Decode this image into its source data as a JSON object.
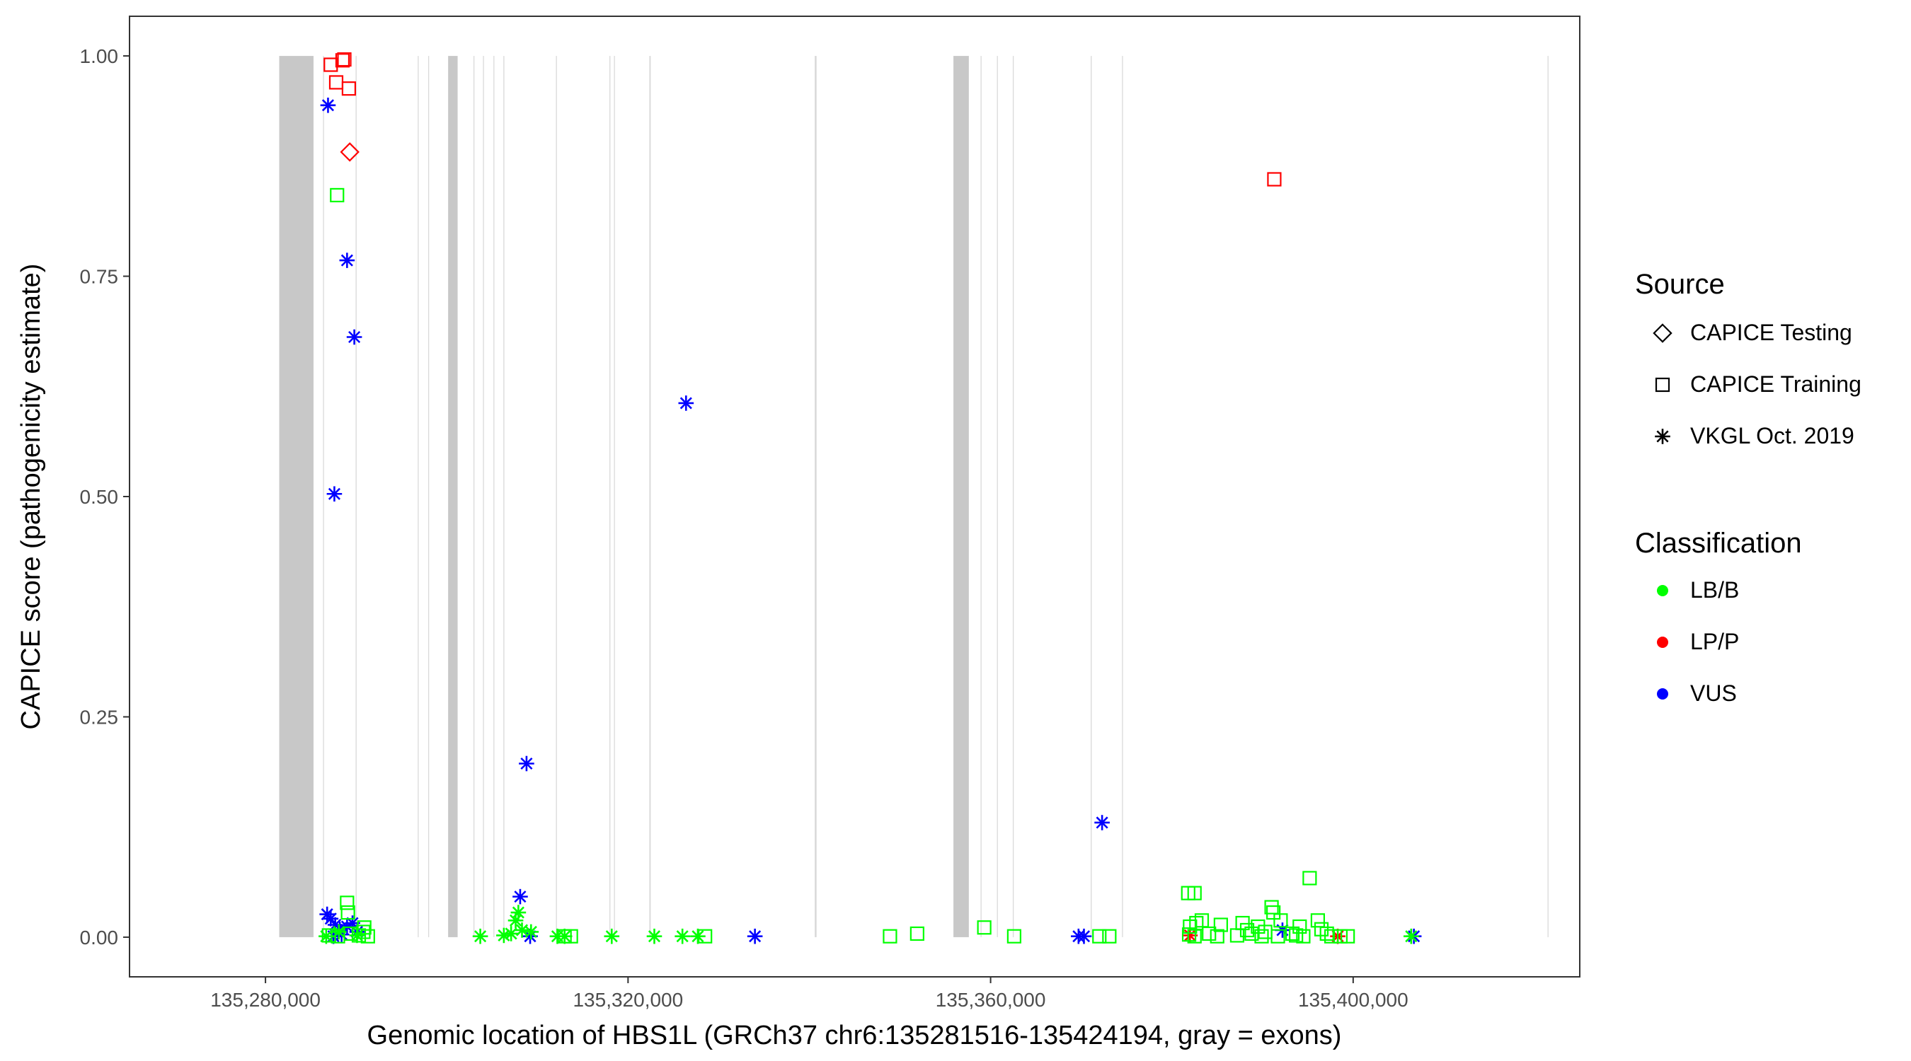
{
  "chart_data": {
    "type": "scatter",
    "xlabel": "Genomic location of HBS1L (GRCh37 chr6:135281516-135424194, gray = exons)",
    "ylabel": "CAPICE score (pathogenicity estimate)",
    "xlim": [
      135265000,
      135425000
    ],
    "ylim": [
      -0.045,
      1.045
    ],
    "x_ticks": [
      135280000,
      135320000,
      135360000,
      135400000
    ],
    "x_tick_labels": [
      "135,280,000",
      "135,320,000",
      "135,360,000",
      "135,400,000"
    ],
    "y_ticks": [
      0,
      0.25,
      0.5,
      0.75,
      1
    ],
    "y_tick_labels": [
      "0.00",
      "0.25",
      "0.50",
      "0.75",
      "1.00"
    ],
    "grid": false,
    "exons": [
      [
        135281516,
        135285300
      ],
      [
        135286350,
        135286450
      ],
      [
        135289950,
        135290050
      ],
      [
        135296800,
        135296900
      ],
      [
        135297950,
        135298050
      ],
      [
        135300150,
        135301200
      ],
      [
        135302950,
        135303050
      ],
      [
        135304000,
        135304100
      ],
      [
        135305150,
        135305250
      ],
      [
        135306250,
        135306350
      ],
      [
        135312050,
        135312150
      ],
      [
        135317950,
        135318050
      ],
      [
        135318450,
        135318550
      ],
      [
        135322350,
        135322500
      ],
      [
        135340600,
        135340800
      ],
      [
        135355900,
        135357600
      ],
      [
        135358900,
        135359000
      ],
      [
        135360700,
        135360800
      ],
      [
        135362450,
        135362550
      ],
      [
        135371050,
        135371150
      ],
      [
        135374500,
        135374600
      ],
      [
        135421450,
        135421550
      ]
    ],
    "legend": {
      "placement": "right",
      "source_title": "Source",
      "source_items": [
        {
          "label": "CAPICE Testing",
          "shape": "diamond"
        },
        {
          "label": "CAPICE Training",
          "shape": "square"
        },
        {
          "label": "VKGL Oct. 2019",
          "shape": "asterisk"
        }
      ],
      "class_title": "Classification",
      "class_items": [
        {
          "label": "LB/B",
          "color": "#00ff00"
        },
        {
          "label": "LP/P",
          "color": "#ff0000"
        },
        {
          "label": "VUS",
          "color": "#0000ff"
        }
      ]
    },
    "series": [
      {
        "classification": "LP/P",
        "source": "CAPICE Training",
        "shape": "square",
        "color": "#ff0000",
        "points": [
          [
            135287200,
            0.99
          ],
          [
            135288500,
            0.995
          ],
          [
            135288700,
            0.996
          ],
          [
            135287800,
            0.97
          ],
          [
            135289200,
            0.963
          ],
          [
            135391300,
            0.86
          ]
        ]
      },
      {
        "classification": "LP/P",
        "source": "CAPICE Testing",
        "shape": "diamond",
        "color": "#ff0000",
        "points": [
          [
            135289300,
            0.891
          ]
        ]
      },
      {
        "classification": "LP/P",
        "source": "VKGL Oct. 2019",
        "shape": "asterisk",
        "color": "#ff0000",
        "points": [
          [
            135382000,
            0.002
          ],
          [
            135398300,
            0.001
          ]
        ]
      },
      {
        "classification": "VUS",
        "source": "VKGL Oct. 2019",
        "shape": "asterisk",
        "color": "#0000ff",
        "points": [
          [
            135286900,
            0.944
          ],
          [
            135289000,
            0.768
          ],
          [
            135289800,
            0.681
          ],
          [
            135287600,
            0.503
          ],
          [
            135326400,
            0.606
          ],
          [
            135308800,
            0.197
          ],
          [
            135372300,
            0.13
          ],
          [
            135308100,
            0.046
          ],
          [
            135286800,
            0.026
          ],
          [
            135287200,
            0.021
          ],
          [
            135287700,
            0.014
          ],
          [
            135288200,
            0.009
          ],
          [
            135289000,
            0.012
          ],
          [
            135289600,
            0.016
          ],
          [
            135288400,
            0.003
          ],
          [
            135287500,
            0.001
          ],
          [
            135290100,
            0.006
          ],
          [
            135309200,
            0.001
          ],
          [
            135334000,
            0.001
          ],
          [
            135369700,
            0.001
          ],
          [
            135370300,
            0.001
          ],
          [
            135392200,
            0.008
          ],
          [
            135406700,
            0.001
          ]
        ]
      },
      {
        "classification": "LB/B",
        "source": "CAPICE Training",
        "shape": "square",
        "color": "#00ff00",
        "points": [
          [
            135287900,
            0.842
          ],
          [
            135289000,
            0.039
          ],
          [
            135289100,
            0.028
          ],
          [
            135287000,
            0.002
          ],
          [
            135288000,
            0.001
          ],
          [
            135289400,
            0.004
          ],
          [
            135290300,
            0.002
          ],
          [
            135290800,
            0.006
          ],
          [
            135291300,
            0.001
          ],
          [
            135290900,
            0.011
          ],
          [
            135313000,
            0.001
          ],
          [
            135313700,
            0.001
          ],
          [
            135328500,
            0.001
          ],
          [
            135348900,
            0.001
          ],
          [
            135351900,
            0.004
          ],
          [
            135359300,
            0.011
          ],
          [
            135362600,
            0.001
          ],
          [
            135372000,
            0.001
          ],
          [
            135373100,
            0.001
          ],
          [
            135381800,
            0.05
          ],
          [
            135382500,
            0.05
          ],
          [
            135382000,
            0.012
          ],
          [
            135382700,
            0.016
          ],
          [
            135383300,
            0.019
          ],
          [
            135381900,
            0.003
          ],
          [
            135382500,
            0.001
          ],
          [
            135384100,
            0.004
          ],
          [
            135385000,
            0.001
          ],
          [
            135385400,
            0.014
          ],
          [
            135387800,
            0.016
          ],
          [
            135388300,
            0.008
          ],
          [
            135388800,
            0.004
          ],
          [
            135389500,
            0.012
          ],
          [
            135390300,
            0.006
          ],
          [
            135391000,
            0.034
          ],
          [
            135391200,
            0.028
          ],
          [
            135391700,
            0.001
          ],
          [
            135392000,
            0.019
          ],
          [
            135393300,
            0.004
          ],
          [
            135394100,
            0.012
          ],
          [
            135394500,
            0.001
          ],
          [
            135395200,
            0.067
          ],
          [
            135396100,
            0.019
          ],
          [
            135396500,
            0.009
          ],
          [
            135397100,
            0.004
          ],
          [
            135397600,
            0.001
          ],
          [
            135398600,
            0.001
          ],
          [
            135399400,
            0.001
          ],
          [
            135387200,
            0.002
          ],
          [
            135389900,
            0.001
          ],
          [
            135393700,
            0.002
          ]
        ]
      },
      {
        "classification": "LB/B",
        "source": "VKGL Oct. 2019",
        "shape": "asterisk",
        "color": "#00ff00",
        "points": [
          [
            135286700,
            0.001
          ],
          [
            135288100,
            0.006
          ],
          [
            135290100,
            0.002
          ],
          [
            135303700,
            0.001
          ],
          [
            135306300,
            0.002
          ],
          [
            135307100,
            0.004
          ],
          [
            135307600,
            0.019
          ],
          [
            135307900,
            0.028
          ],
          [
            135308300,
            0.008
          ],
          [
            135309300,
            0.006
          ],
          [
            135312200,
            0.001
          ],
          [
            135313000,
            0.001
          ],
          [
            135318200,
            0.001
          ],
          [
            135322900,
            0.001
          ],
          [
            135326000,
            0.001
          ],
          [
            135327700,
            0.001
          ],
          [
            135406400,
            0.001
          ]
        ]
      }
    ]
  }
}
